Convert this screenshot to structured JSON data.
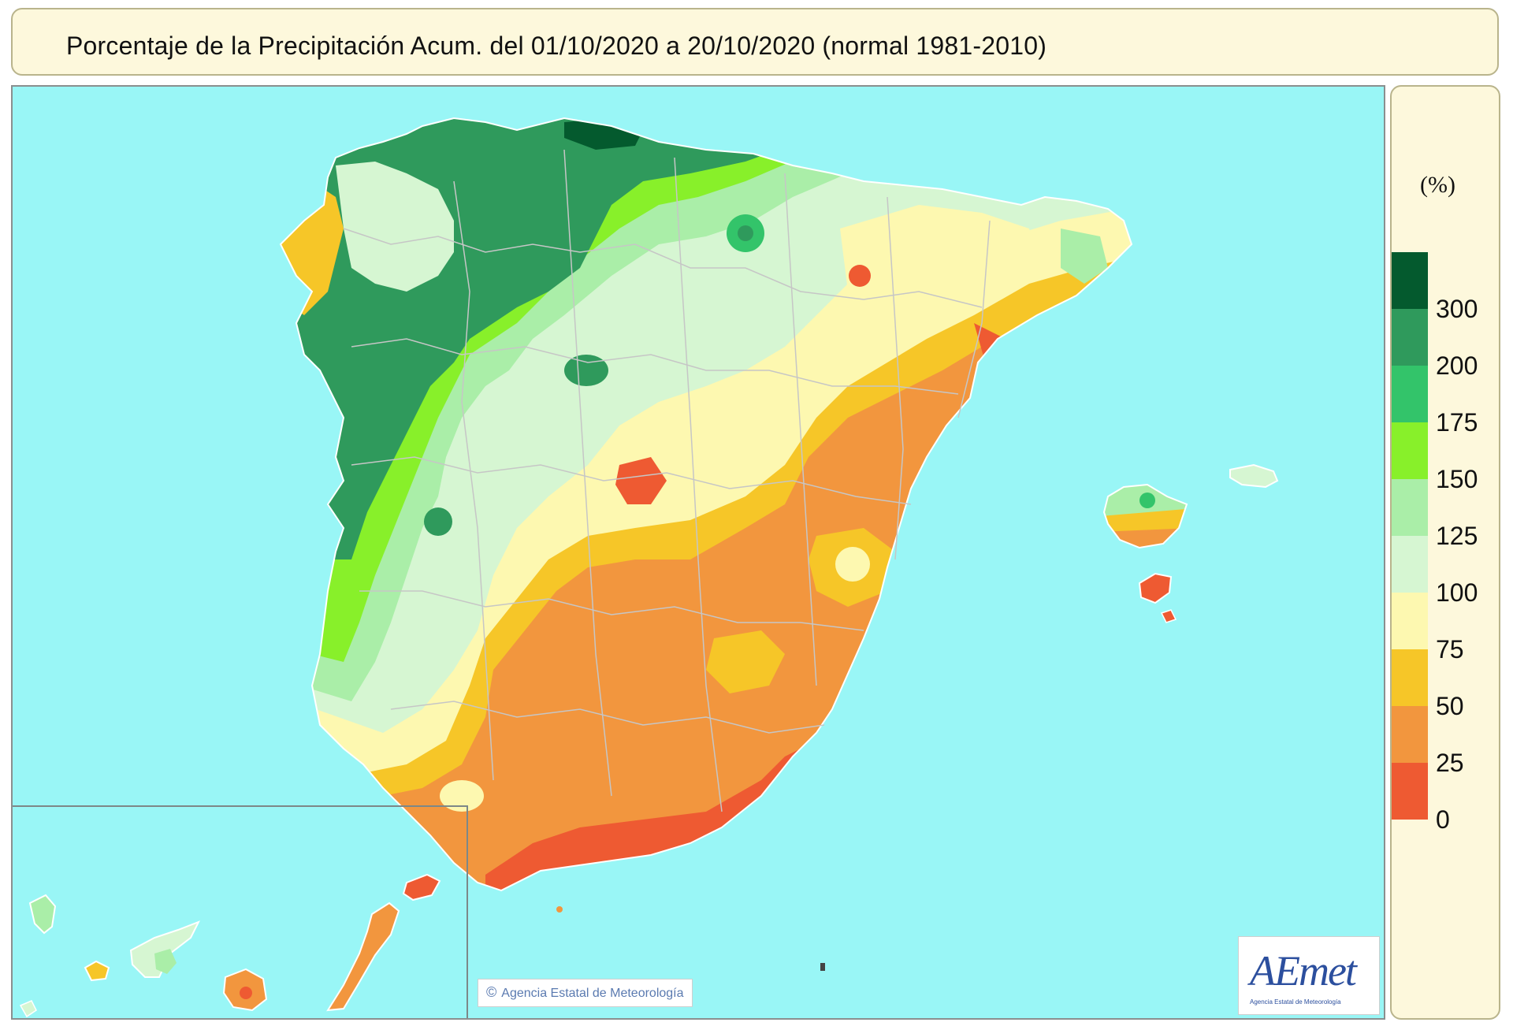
{
  "header": {
    "title": "Porcentaje de la Precipitación Acum. del 01/10/2020 a  20/10/2020  (normal 1981-2010)"
  },
  "legend": {
    "unit": "(%)",
    "ticks": [
      "300",
      "200",
      "175",
      "150",
      "125",
      "100",
      "75",
      "50",
      "25",
      "0"
    ],
    "classes": [
      {
        "range": ">300",
        "color": "#045a2e"
      },
      {
        "range": "200-300",
        "color": "#2f9a5c"
      },
      {
        "range": "175-200",
        "color": "#33c46a"
      },
      {
        "range": "150-175",
        "color": "#88f02a"
      },
      {
        "range": "125-150",
        "color": "#aaeea8"
      },
      {
        "range": "100-125",
        "color": "#d6f6d2"
      },
      {
        "range": "75-100",
        "color": "#fdf8b0"
      },
      {
        "range": "50-75",
        "color": "#f6c628"
      },
      {
        "range": "25-50",
        "color": "#f2963e"
      },
      {
        "range": "0-25",
        "color": "#ee5a32"
      }
    ]
  },
  "map": {
    "sea_color": "#99f6f6",
    "land_outline_color": "#ffffff",
    "province_border_color": "#c6c6c6",
    "inset": "Canarias"
  },
  "branding": {
    "logo": "AEmet",
    "logo_sub": "Agencia Estatal de Meteorología",
    "credit_icon": "copyright-icon",
    "credit": "Agencia Estatal de Meteorología"
  }
}
